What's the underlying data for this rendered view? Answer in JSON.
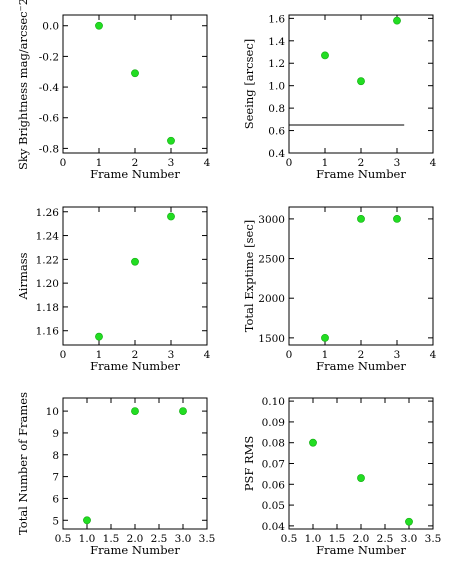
{
  "chart_data": [
    {
      "type": "scatter",
      "xlabel": "Frame Number",
      "ylabel": "Sky Brightness mag/arcsec⁻2",
      "xlim": [
        0,
        4
      ],
      "ylim": [
        -0.83,
        0.07
      ],
      "xticks": [
        0,
        1,
        2,
        3,
        4
      ],
      "xtick_labels": [
        "0",
        "1",
        "2",
        "3",
        "4"
      ],
      "yticks": [
        0.0,
        -0.2,
        -0.4,
        -0.6,
        -0.8
      ],
      "ytick_labels": [
        "0.0",
        "-0.2",
        "-0.4",
        "-0.6",
        "-0.8"
      ],
      "x": [
        1,
        2,
        3
      ],
      "y": [
        0.0,
        -0.31,
        -0.75
      ],
      "point_color": "#22dd22"
    },
    {
      "type": "scatter",
      "xlabel": "Frame Number",
      "ylabel": "Seeing [arcsec]",
      "xlim": [
        0,
        4
      ],
      "ylim": [
        0.4,
        1.63
      ],
      "xticks": [
        0,
        1,
        2,
        3,
        4
      ],
      "xtick_labels": [
        "0",
        "1",
        "2",
        "3",
        "4"
      ],
      "yticks": [
        0.4,
        0.6,
        0.8,
        1.0,
        1.2,
        1.4,
        1.6
      ],
      "ytick_labels": [
        "0.4",
        "0.6",
        "0.8",
        "1.0",
        "1.2",
        "1.4",
        "1.6"
      ],
      "x": [
        1,
        2,
        3
      ],
      "y": [
        1.27,
        1.04,
        1.58
      ],
      "hline": {
        "y": 0.65,
        "x_from": 0,
        "x_to": 3.2
      },
      "point_color": "#22dd22"
    },
    {
      "type": "scatter",
      "xlabel": "Frame Number",
      "ylabel": "Airmass",
      "xlim": [
        0,
        4
      ],
      "ylim": [
        1.148,
        1.264
      ],
      "xticks": [
        0,
        1,
        2,
        3,
        4
      ],
      "xtick_labels": [
        "0",
        "1",
        "2",
        "3",
        "4"
      ],
      "yticks": [
        1.16,
        1.18,
        1.2,
        1.22,
        1.24,
        1.26
      ],
      "ytick_labels": [
        "1.16",
        "1.18",
        "1.20",
        "1.22",
        "1.24",
        "1.26"
      ],
      "x": [
        1,
        2,
        3
      ],
      "y": [
        1.155,
        1.218,
        1.256
      ],
      "point_color": "#22dd22"
    },
    {
      "type": "scatter",
      "xlabel": "Frame Number",
      "ylabel": "Total Exptime [sec]",
      "xlim": [
        0,
        4
      ],
      "ylim": [
        1410,
        3150
      ],
      "xticks": [
        0,
        1,
        2,
        3,
        4
      ],
      "xtick_labels": [
        "0",
        "1",
        "2",
        "3",
        "4"
      ],
      "yticks": [
        1500,
        2000,
        2500,
        3000
      ],
      "ytick_labels": [
        "1500",
        "2000",
        "2500",
        "3000"
      ],
      "x": [
        1,
        2,
        3
      ],
      "y": [
        1500,
        3000,
        3000
      ],
      "point_color": "#22dd22"
    },
    {
      "type": "scatter",
      "xlabel": "Frame Number",
      "ylabel": "Total Number of Frames",
      "xlim": [
        0.5,
        3.5
      ],
      "ylim": [
        4.6,
        10.6
      ],
      "xticks": [
        0.5,
        1.0,
        1.5,
        2.0,
        2.5,
        3.0,
        3.5
      ],
      "xtick_labels": [
        "0.5",
        "1.0",
        "1.5",
        "2.0",
        "2.5",
        "3.0",
        "3.5"
      ],
      "yticks": [
        5,
        6,
        7,
        8,
        9,
        10
      ],
      "ytick_labels": [
        "5",
        "6",
        "7",
        "8",
        "9",
        "10"
      ],
      "x": [
        1,
        2,
        3
      ],
      "y": [
        5,
        10,
        10
      ],
      "point_color": "#22dd22"
    },
    {
      "type": "scatter",
      "xlabel": "Frame Number",
      "ylabel": "PSF RMS",
      "xlim": [
        0.5,
        3.5
      ],
      "ylim": [
        0.0385,
        0.1015
      ],
      "xticks": [
        0.5,
        1.0,
        1.5,
        2.0,
        2.5,
        3.0,
        3.5
      ],
      "xtick_labels": [
        "0.5",
        "1.0",
        "1.5",
        "2.0",
        "2.5",
        "3.0",
        "3.5"
      ],
      "yticks": [
        0.04,
        0.05,
        0.06,
        0.07,
        0.08,
        0.09,
        0.1
      ],
      "ytick_labels": [
        "0.04",
        "0.05",
        "0.06",
        "0.07",
        "0.08",
        "0.09",
        "0.10"
      ],
      "x": [
        1,
        2,
        3
      ],
      "y": [
        0.08,
        0.063,
        0.042
      ],
      "point_color": "#22dd22"
    }
  ]
}
